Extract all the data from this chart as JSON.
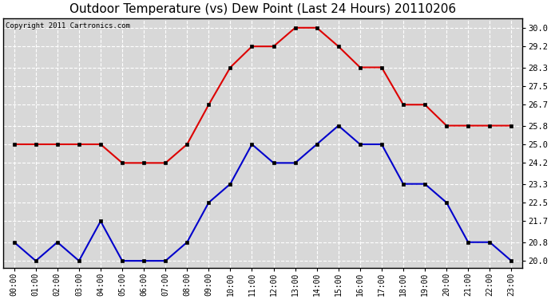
{
  "title": "Outdoor Temperature (vs) Dew Point (Last 24 Hours) 20110206",
  "copyright": "Copyright 2011 Cartronics.com",
  "hours": [
    "00:00",
    "01:00",
    "02:00",
    "03:00",
    "04:00",
    "05:00",
    "06:00",
    "07:00",
    "08:00",
    "09:00",
    "10:00",
    "11:00",
    "12:00",
    "13:00",
    "14:00",
    "15:00",
    "16:00",
    "17:00",
    "18:00",
    "19:00",
    "20:00",
    "21:00",
    "22:00",
    "23:00"
  ],
  "temp_red": [
    25.0,
    25.0,
    25.0,
    25.0,
    25.0,
    24.2,
    24.2,
    24.2,
    25.0,
    26.7,
    28.3,
    29.2,
    29.2,
    30.0,
    30.0,
    29.2,
    28.3,
    28.3,
    26.7,
    26.7,
    25.8,
    25.8,
    25.8,
    25.8
  ],
  "temp_blue": [
    20.8,
    20.0,
    20.8,
    20.0,
    21.7,
    20.0,
    20.0,
    20.0,
    20.8,
    22.5,
    23.3,
    25.0,
    24.2,
    24.2,
    25.0,
    25.8,
    25.0,
    25.0,
    23.3,
    23.3,
    22.5,
    20.8,
    20.8,
    20.0
  ],
  "red_color": "#dd0000",
  "blue_color": "#0000cc",
  "bg_color": "#d8d8d8",
  "grid_color": "#ffffff",
  "ylim": [
    19.7,
    30.4
  ],
  "yticks": [
    20.0,
    20.8,
    21.7,
    22.5,
    23.3,
    24.2,
    25.0,
    25.8,
    26.7,
    27.5,
    28.3,
    29.2,
    30.0
  ],
  "title_fontsize": 11,
  "copyright_fontsize": 6.5,
  "marker_size": 3.5,
  "line_width": 1.5
}
